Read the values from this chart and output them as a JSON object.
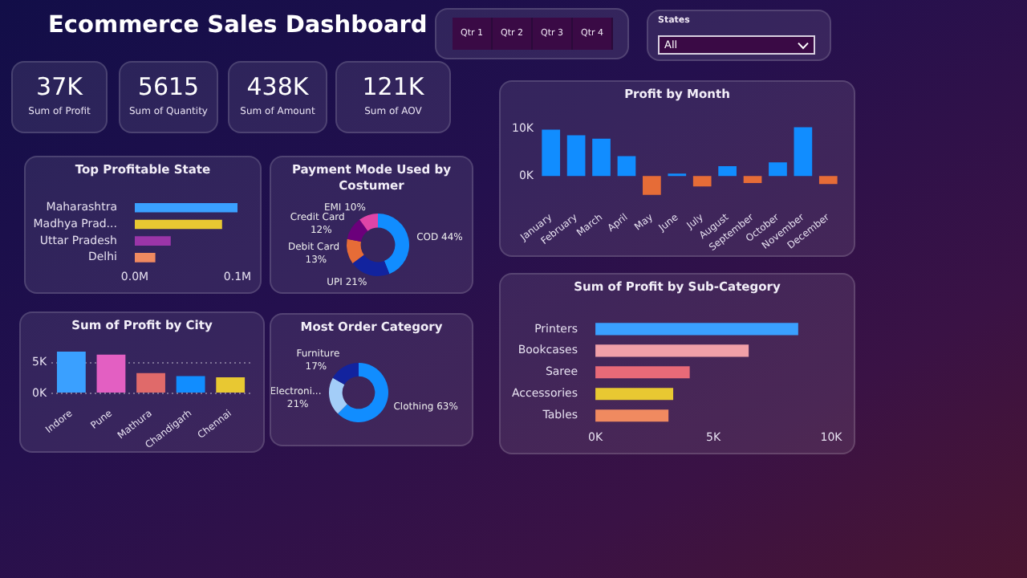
{
  "chart_data": [
    {
      "type": "other",
      "title": "Ecommerce Sales Dashboard",
      "annotations": [
        "37K",
        "Sum of Profit",
        "5615",
        "Sum of Quantity",
        "438K",
        "Sum of Amount",
        "121K",
        "Sum of AOV"
      ]
    },
    {
      "type": "other",
      "annotations": [
        "Qtr 1",
        "Qtr 2",
        "Qtr 3",
        "Qtr 4",
        "States",
        "All"
      ]
    },
    {
      "type": "bar",
      "title": "Profit by Month",
      "categories": [
        "January",
        "February",
        "March",
        "April",
        "May",
        "June",
        "July",
        "August",
        "September",
        "October",
        "November",
        "December"
      ],
      "values": [
        9800,
        8600,
        7900,
        4200,
        -4000,
        500,
        -2200,
        2100,
        -1500,
        2900,
        10300,
        -1700
      ],
      "colors": [
        "#118dff",
        "#118dff",
        "#118dff",
        "#118dff",
        "#e66c37",
        "#118dff",
        "#e66c37",
        "#118dff",
        "#e66c37",
        "#118dff",
        "#118dff",
        "#e66c37"
      ],
      "ylim": [
        -4500,
        11000
      ],
      "yticks": [
        {
          "value": 0,
          "label": "0K"
        },
        {
          "value": 10000,
          "label": "10K"
        }
      ]
    },
    {
      "type": "bar",
      "title": "Top Profitable State",
      "orientation": "horizontal",
      "categories": [
        "Maharashtra",
        "Madhya Prad...",
        "Uttar Pradesh",
        "Delhi"
      ],
      "values": [
        100000,
        85000,
        35000,
        20000
      ],
      "colors": [
        "#3aa0ff",
        "#e8c832",
        "#9b35a8",
        "#f08a60"
      ],
      "xlim": [
        0,
        100000
      ],
      "xticks": [
        {
          "value": 0,
          "label": "0.0M"
        },
        {
          "value": 100000,
          "label": "0.1M"
        }
      ]
    },
    {
      "type": "donut",
      "title": "Payment Mode Used by Costumer",
      "categories": [
        "COD",
        "UPI",
        "Debit Card",
        "Credit Card",
        "EMI"
      ],
      "values": [
        44,
        21,
        13,
        12,
        10
      ],
      "colors": [
        "#118dff",
        "#12239e",
        "#e66c37",
        "#6b007b",
        "#e044a7"
      ],
      "value_labels": [
        "44%",
        "21%",
        "13%",
        "12%",
        "10%"
      ]
    },
    {
      "type": "bar",
      "title": "Sum of Profit by City",
      "categories": [
        "Indore",
        "Pune",
        "Mathura",
        "Chandigarh",
        "Chennai"
      ],
      "values": [
        6800,
        6300,
        3300,
        2800,
        2600
      ],
      "colors": [
        "#3aa0ff",
        "#e35fc2",
        "#e06a6a",
        "#118dff",
        "#e8c832"
      ],
      "ylim": [
        0,
        7000
      ],
      "yticks": [
        {
          "value": 0,
          "label": "0K"
        },
        {
          "value": 5000,
          "label": "5K"
        }
      ],
      "grid": "y"
    },
    {
      "type": "donut",
      "title": "Most Order Category",
      "categories": [
        "Clothing",
        "Electroni...",
        "Furniture"
      ],
      "values": [
        63,
        21,
        17
      ],
      "colors": [
        "#118dff",
        "#a3cdf8",
        "#12239e"
      ],
      "value_labels": [
        "63%",
        "21%",
        "17%"
      ]
    },
    {
      "type": "bar",
      "title": "Sum of Profit by Sub-Category",
      "orientation": "horizontal",
      "categories": [
        "Printers",
        "Bookcases",
        "Saree",
        "Accessories",
        "Tables"
      ],
      "values": [
        8600,
        6500,
        4000,
        3300,
        3100
      ],
      "colors": [
        "#3aa0ff",
        "#f0a0a8",
        "#e86a78",
        "#e8c832",
        "#f08a60"
      ],
      "xlim": [
        0,
        10000
      ],
      "xticks": [
        {
          "value": 0,
          "label": "0K"
        },
        {
          "value": 5000,
          "label": "5K"
        },
        {
          "value": 10000,
          "label": "10K"
        }
      ]
    }
  ]
}
